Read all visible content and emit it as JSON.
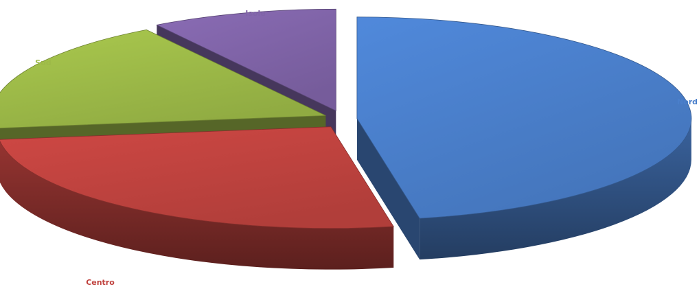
{
  "chart_data": {
    "type": "pie",
    "style": "3d-exploded",
    "title": "",
    "categories": [
      "Nord",
      "Centro",
      "Sud",
      "Isole"
    ],
    "values": [
      47,
      26,
      18,
      9
    ],
    "colors": {
      "Nord": "#4a7fcb",
      "Centro": "#c0433f",
      "Sud": "#9dba48",
      "Isole": "#8064a8"
    },
    "labels": {
      "nord": "Nord",
      "centro": "Centro",
      "sud": "Sud",
      "isole": "Isole"
    },
    "legend": "none"
  }
}
